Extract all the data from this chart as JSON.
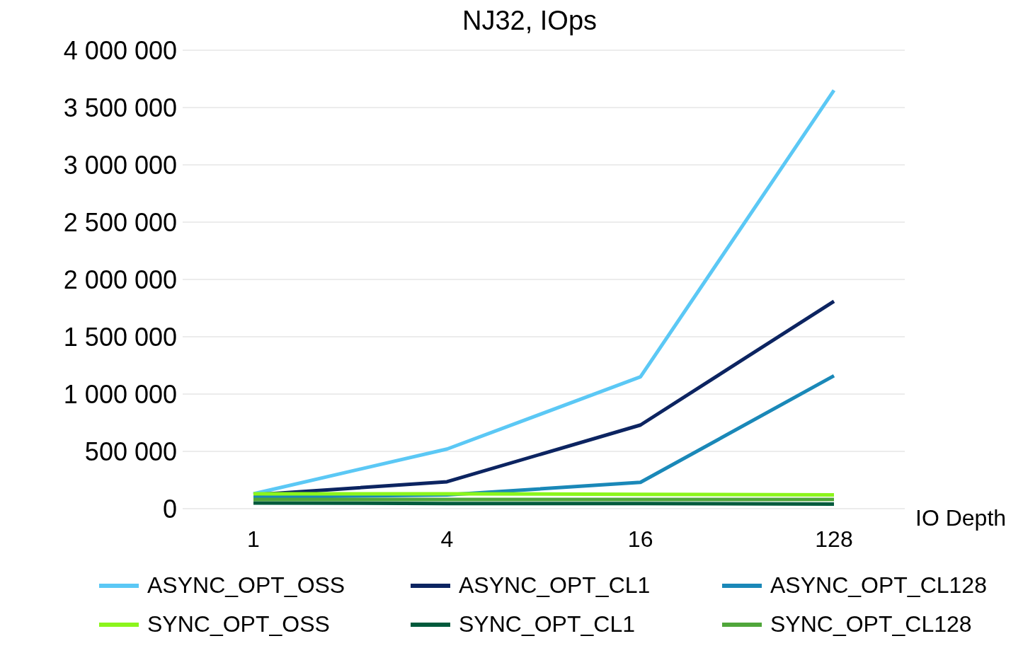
{
  "chart_data": {
    "type": "line",
    "title": "NJ32, IOps",
    "xlabel": "IO Depth",
    "categories": [
      "1",
      "4",
      "16",
      "128"
    ],
    "series": [
      {
        "name": "ASYNC_OPT_OSS",
        "color": "#5bc8f5",
        "values": [
          130000,
          520000,
          1150000,
          3650000
        ]
      },
      {
        "name": "ASYNC_OPT_CL1",
        "color": "#0c2461",
        "values": [
          120000,
          235000,
          730000,
          1810000
        ]
      },
      {
        "name": "ASYNC_OPT_CL128",
        "color": "#1a88b8",
        "values": [
          100000,
          120000,
          230000,
          1160000
        ]
      },
      {
        "name": "SYNC_OPT_OSS",
        "color": "#8cf51c",
        "values": [
          130000,
          130000,
          125000,
          120000
        ]
      },
      {
        "name": "SYNC_OPT_CL1",
        "color": "#005a3c",
        "values": [
          50000,
          45000,
          45000,
          40000
        ]
      },
      {
        "name": "SYNC_OPT_CL128",
        "color": "#4fa63a",
        "values": [
          80000,
          80000,
          80000,
          80000
        ]
      }
    ],
    "ylim": [
      0,
      4000000
    ],
    "yticks": [
      {
        "value": 0,
        "label": "0"
      },
      {
        "value": 500000,
        "label": "500 000"
      },
      {
        "value": 1000000,
        "label": "1 000 000"
      },
      {
        "value": 1500000,
        "label": "1 500 000"
      },
      {
        "value": 2000000,
        "label": "2 000 000"
      },
      {
        "value": 2500000,
        "label": "2 500 000"
      },
      {
        "value": 3000000,
        "label": "3 000 000"
      },
      {
        "value": 3500000,
        "label": "3 500 000"
      },
      {
        "value": 4000000,
        "label": "4 000 000"
      }
    ],
    "grid": "y",
    "legend": "bottom",
    "marker": "none",
    "line_style": "solid"
  }
}
